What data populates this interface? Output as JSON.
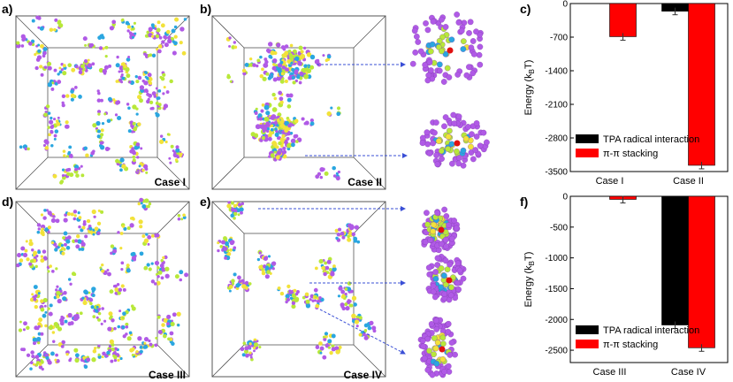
{
  "panel_labels": {
    "a": "a)",
    "b": "b)",
    "c": "c)",
    "d": "d)",
    "e": "e)",
    "f": "f)"
  },
  "case_labels": {
    "a": "Case I",
    "b": "Case II",
    "d": "Case III",
    "e": "Case IV"
  },
  "colors": {
    "tpa": "#000000",
    "pi": "#ff0000",
    "molecule_purple": "#b05ae6",
    "molecule_green": "#b8e83a",
    "molecule_blue": "#2aa6e0",
    "molecule_yellow": "#f2e23a",
    "arrow": "#3a4fd6"
  },
  "chart_data": [
    {
      "type": "bar",
      "panel": "c",
      "categories": [
        "Case I",
        "Case II"
      ],
      "series": [
        {
          "name": "TPA radical interaction",
          "values": [
            0,
            -160
          ]
        },
        {
          "name": "π-π stacking",
          "values": [
            -690,
            -3370
          ]
        }
      ],
      "ylabel": "Energy (kBT)",
      "ylabel_main": "Energy (k",
      "ylabel_sub": "B",
      "ylabel_end": "T)",
      "yticks": [
        0,
        -700,
        -1400,
        -2100,
        -2800,
        -3500
      ],
      "ytick_labels": [
        "0",
        "-700",
        "-1400",
        "-2100",
        "-2800",
        "-3500"
      ],
      "ylim": [
        -3500,
        0
      ],
      "legend": "bottom-left"
    },
    {
      "type": "bar",
      "panel": "f",
      "categories": [
        "Case III",
        "Case IV"
      ],
      "series": [
        {
          "name": "TPA radical interaction",
          "values": [
            0,
            -2090
          ]
        },
        {
          "name": "π-π stacking",
          "values": [
            -50,
            -2460
          ]
        }
      ],
      "ylabel": "Energy (kBT)",
      "ylabel_main": "Energy (k",
      "ylabel_sub": "B",
      "ylabel_end": "T)",
      "yticks": [
        0,
        -500,
        -1000,
        -1500,
        -2000,
        -2500
      ],
      "ytick_labels": [
        "0",
        "-500",
        "-1000",
        "-1500",
        "-2000",
        "-2500"
      ],
      "ylim": [
        -2700,
        0
      ],
      "legend": "bottom-left"
    }
  ]
}
